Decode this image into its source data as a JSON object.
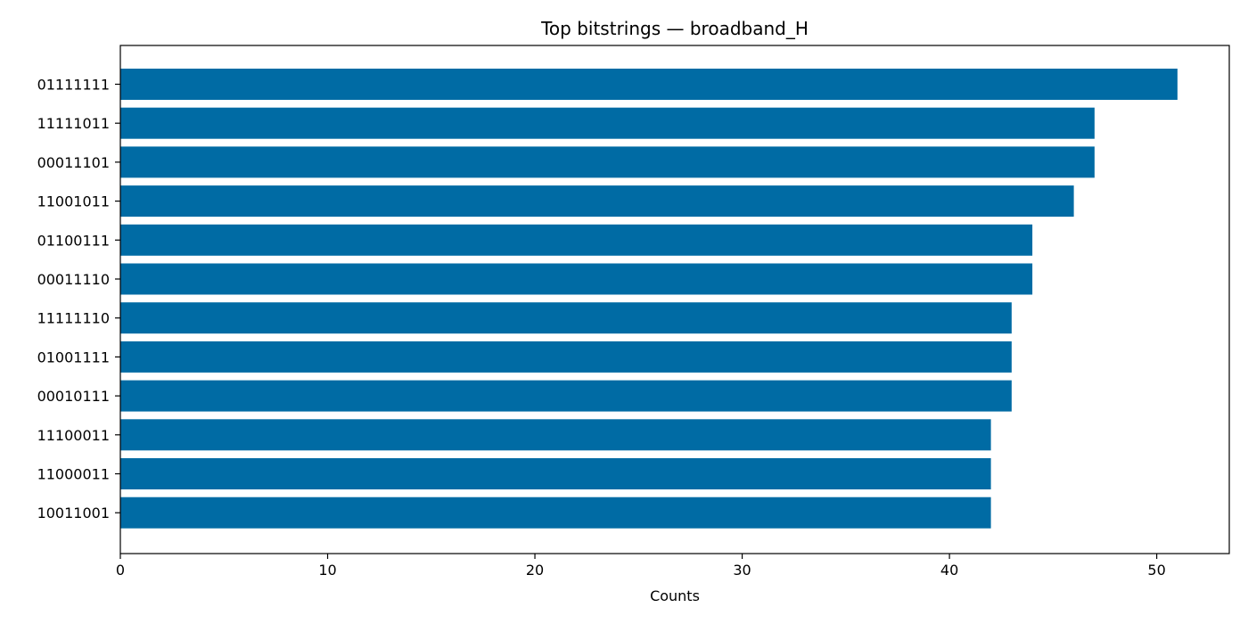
{
  "chart_data": {
    "type": "bar",
    "orientation": "horizontal",
    "title": "Top bitstrings — broadband_H",
    "xlabel": "Counts",
    "ylabel": "",
    "categories": [
      "01111111",
      "11111011",
      "00011101",
      "11001011",
      "01100111",
      "00011110",
      "11111110",
      "01001111",
      "00010111",
      "11100011",
      "11000011",
      "10011001"
    ],
    "values": [
      51,
      47,
      47,
      46,
      44,
      44,
      43,
      43,
      43,
      42,
      42,
      42
    ],
    "xlim": [
      0,
      53.5
    ],
    "xticks": [
      0,
      10,
      20,
      30,
      40,
      50
    ],
    "bar_color": "#006BA4",
    "grid": false,
    "legend": "none"
  }
}
